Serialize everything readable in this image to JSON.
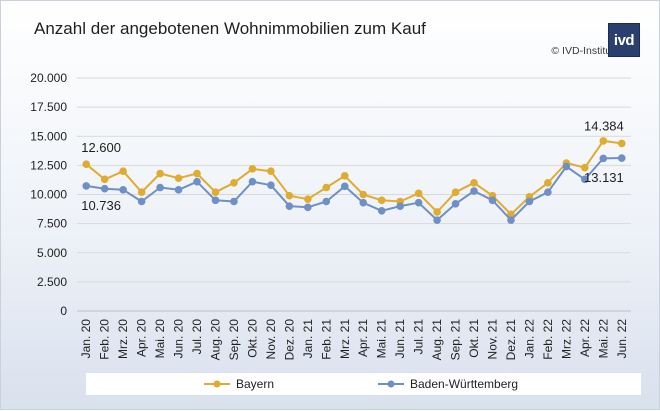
{
  "title": "Anzahl der angebotenen Wohnimmobilien zum Kauf",
  "copyright": "© IVD-Institut",
  "logo_text": "ivd",
  "colors": {
    "bayern": "#E0AC2F",
    "bw": "#6E90C6",
    "grid": "#D9D9D9"
  },
  "chart_data": {
    "type": "line",
    "title": "Anzahl der angebotenen Wohnimmobilien zum Kauf",
    "xlabel": "",
    "ylabel": "",
    "ylim": [
      0,
      20000
    ],
    "yticks": [
      "0",
      "2.500",
      "5.000",
      "7.500",
      "10.000",
      "12.500",
      "15.000",
      "17.500",
      "20.000"
    ],
    "grid": true,
    "legend_position": "bottom",
    "categories": [
      "Jan. 20",
      "Feb. 20",
      "Mrz. 20",
      "Apr. 20",
      "Mai. 20",
      "Jun. 20",
      "Jul. 20",
      "Aug. 20",
      "Sep. 20",
      "Okt. 20",
      "Nov. 20",
      "Dez. 20",
      "Jan. 21",
      "Feb. 21",
      "Mrz. 21",
      "Apr. 21",
      "Mai. 21",
      "Jun. 21",
      "Jul. 21",
      "Aug. 21",
      "Sep. 21",
      "Okt. 21",
      "Nov. 21",
      "Dez. 21",
      "Jan. 22",
      "Feb. 22",
      "Mrz. 22",
      "Apr. 22",
      "Mai. 22",
      "Jun. 22"
    ],
    "series": [
      {
        "name": "Bayern",
        "values": [
          12600,
          11300,
          12000,
          10200,
          11800,
          11400,
          11800,
          10200,
          11000,
          12200,
          12000,
          9900,
          9600,
          10600,
          11600,
          10000,
          9500,
          9400,
          10100,
          8500,
          10200,
          11000,
          9900,
          8300,
          9800,
          11000,
          12700,
          12300,
          14600,
          14384
        ]
      },
      {
        "name": "Baden-Württemberg",
        "values": [
          10736,
          10500,
          10400,
          9400,
          10600,
          10400,
          11100,
          9500,
          9400,
          11100,
          10800,
          9000,
          8900,
          9400,
          10700,
          9300,
          8600,
          9000,
          9300,
          7800,
          9200,
          10300,
          9500,
          7800,
          9400,
          10200,
          12400,
          11300,
          13100,
          13131
        ]
      }
    ],
    "annotations": [
      {
        "series": "Bayern",
        "index": 0,
        "text": "12.600"
      },
      {
        "series": "Baden-Württemberg",
        "index": 0,
        "text": "10.736"
      },
      {
        "series": "Bayern",
        "index": 29,
        "text": "14.384"
      },
      {
        "series": "Baden-Württemberg",
        "index": 29,
        "text": "13.131"
      }
    ]
  }
}
